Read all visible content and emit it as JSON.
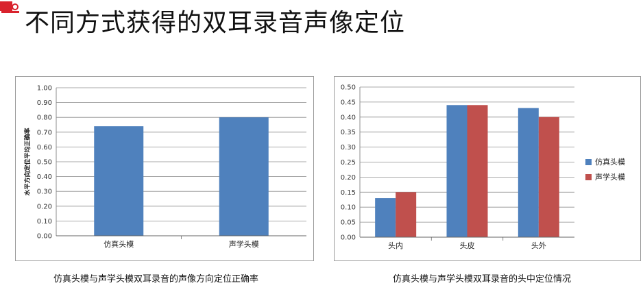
{
  "slide": {
    "title": "不同方式获得的双耳录音声像定位"
  },
  "colors": {
    "series1": "#4f81bd",
    "series2": "#c0504d",
    "grid": "#8c8c8c",
    "logo_red": "#d9232d"
  },
  "captions": {
    "left": "仿真头模与声学头模双耳录音的声像方向定位正确率",
    "right": "仿真头模与声学头模双耳录音的头中定位情况"
  },
  "chart_data": [
    {
      "type": "bar",
      "categories": [
        "仿真头模",
        "声学头模"
      ],
      "series": [
        {
          "values": [
            0.74,
            0.8
          ]
        }
      ],
      "ylabel": "水平方向定位平均正确率",
      "ylim": [
        0,
        1.0
      ],
      "yticks": [
        "0.00",
        "0.10",
        "0.20",
        "0.30",
        "0.40",
        "0.50",
        "0.60",
        "0.70",
        "0.80",
        "0.90",
        "1.00"
      ],
      "grid": true,
      "legend": "none"
    },
    {
      "type": "bar",
      "categories": [
        "头内",
        "头皮",
        "头外"
      ],
      "series": [
        {
          "name": "仿真头模",
          "values": [
            0.13,
            0.44,
            0.43
          ]
        },
        {
          "name": "声学头模",
          "values": [
            0.15,
            0.44,
            0.4
          ]
        }
      ],
      "ylim": [
        0,
        0.5
      ],
      "yticks": [
        "0.00",
        "0.05",
        "0.10",
        "0.15",
        "0.20",
        "0.25",
        "0.30",
        "0.35",
        "0.40",
        "0.45",
        "0.50"
      ],
      "grid": true,
      "legend": "right"
    }
  ]
}
